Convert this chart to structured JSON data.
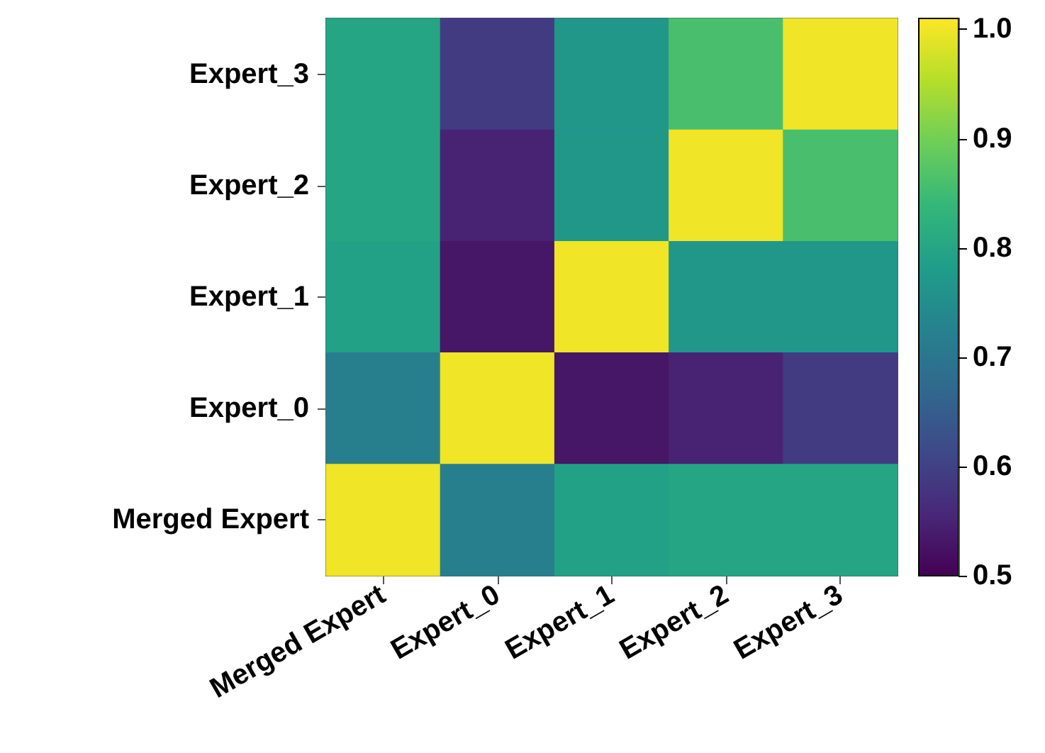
{
  "chart_data": {
    "type": "heatmap",
    "categories": [
      "Merged Expert",
      "Expert_0",
      "Expert_1",
      "Expert_2",
      "Expert_3"
    ],
    "y_categories": [
      "Expert_3",
      "Expert_2",
      "Expert_1",
      "Expert_0",
      "Merged Expert"
    ],
    "cells": [
      [
        0.8,
        0.59,
        0.77,
        0.86,
        1.0
      ],
      [
        0.8,
        0.55,
        0.77,
        1.0,
        0.86
      ],
      [
        0.79,
        0.53,
        1.0,
        0.77,
        0.77
      ],
      [
        0.72,
        1.0,
        0.53,
        0.55,
        0.59
      ],
      [
        1.0,
        0.72,
        0.79,
        0.8,
        0.8
      ]
    ],
    "clim": [
      0.5,
      1.01
    ],
    "cticks": [
      0.5,
      {
        "value": 0.6,
        "label": "0.6"
      },
      {
        "value": 0.7,
        "label": "0.7"
      },
      {
        "value": 0.8,
        "label": "0.8"
      },
      {
        "value": 0.9,
        "label": "0.9"
      },
      {
        "value": 1.0,
        "label": "1.0"
      }
    ]
  }
}
